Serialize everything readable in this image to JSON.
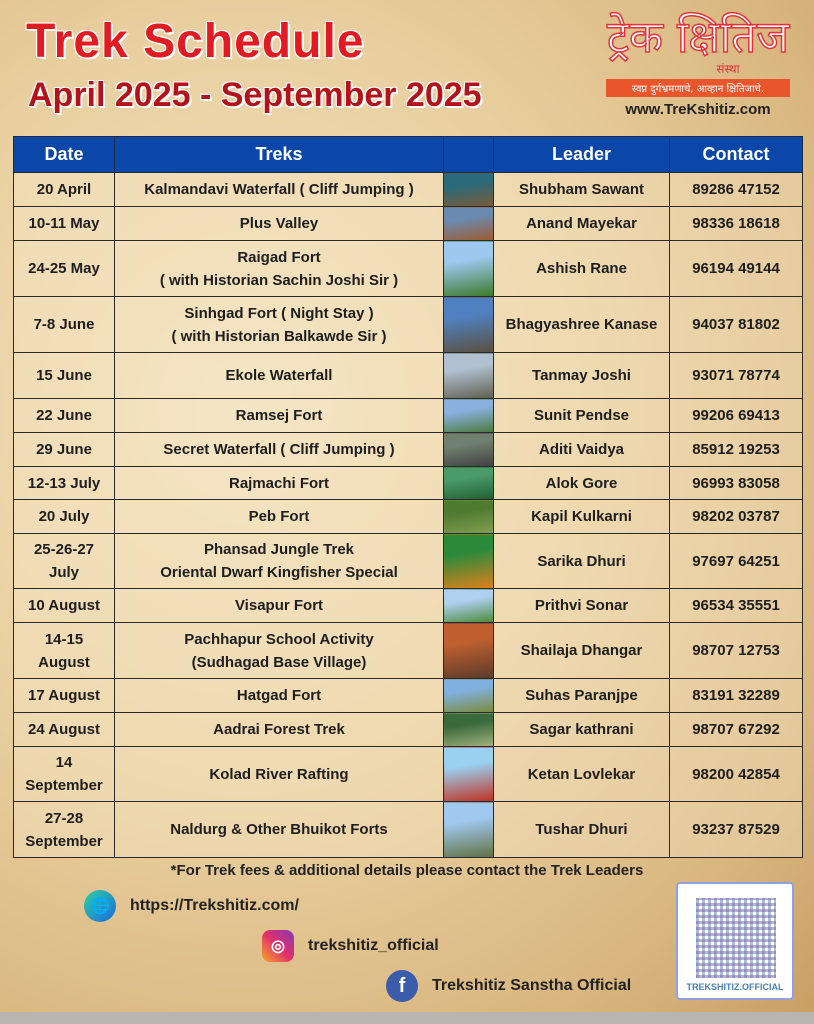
{
  "header": {
    "title": "Trek Schedule",
    "subtitle": "April 2025 - September 2025"
  },
  "logo": {
    "name": "ट्रेक क्षितिज",
    "sanstha": "संस्था",
    "tagline": "स्वप्न दुर्गभ्रमणाचे, आव्हान क्षितिजाचे.",
    "url": "www.TreKshitiz.com"
  },
  "table": {
    "columns": [
      "Date",
      "Treks",
      "",
      "Leader",
      "Contact"
    ],
    "rows": [
      {
        "date": "20 April",
        "trek": "Kalmandavi Waterfall ( Cliff Jumping )",
        "leader": "Shubham Sawant",
        "contact": "89286 47152"
      },
      {
        "date": "10-11 May",
        "trek": "Plus Valley",
        "leader": "Anand Mayekar",
        "contact": "98336 18618"
      },
      {
        "date": "24-25 May",
        "trek": "Raigad Fort\n( with Historian Sachin Joshi Sir )",
        "leader": "Ashish Rane",
        "contact": "96194 49144"
      },
      {
        "date": "7-8 June",
        "trek": "Sinhgad Fort ( Night Stay )\n( with Historian Balkawde Sir )",
        "leader": "Bhagyashree Kanase",
        "contact": "94037 81802"
      },
      {
        "date": "15 June",
        "trek": "Ekole Waterfall",
        "leader": "Tanmay Joshi",
        "contact": "93071 78774"
      },
      {
        "date": "22 June",
        "trek": "Ramsej Fort",
        "leader": "Sunit Pendse",
        "contact": "99206 69413"
      },
      {
        "date": "29 June",
        "trek": "Secret Waterfall ( Cliff Jumping )",
        "leader": "Aditi Vaidya",
        "contact": "85912 19253"
      },
      {
        "date": "12-13 July",
        "trek": "Rajmachi Fort",
        "leader": "Alok Gore",
        "contact": "96993 83058"
      },
      {
        "date": "20 July",
        "trek": "Peb Fort",
        "leader": "Kapil Kulkarni",
        "contact": "98202 03787"
      },
      {
        "date": "25-26-27\nJuly",
        "trek": "Phansad Jungle Trek\nOriental Dwarf Kingfisher Special",
        "leader": "Sarika Dhuri",
        "contact": "97697 64251"
      },
      {
        "date": "10 August",
        "trek": "Visapur Fort",
        "leader": "Prithvi Sonar",
        "contact": "96534 35551"
      },
      {
        "date": "14-15\nAugust",
        "trek": "Pachhapur School Activity\n(Sudhagad Base Village)",
        "leader": "Shailaja Dhangar",
        "contact": "98707 12753"
      },
      {
        "date": "17 August",
        "trek": "Hatgad Fort",
        "leader": "Suhas Paranjpe",
        "contact": "83191 32289"
      },
      {
        "date": "24 August",
        "trek": "Aadrai Forest Trek",
        "leader": "Sagar kathrani",
        "contact": "98707 67292"
      },
      {
        "date": "14\nSeptember",
        "trek": "Kolad River Rafting",
        "leader": "Ketan Lovlekar",
        "contact": "98200 42854"
      },
      {
        "date": "27-28\nSeptember",
        "trek": "Naldurg & Other Bhuikot Forts",
        "leader": "Tushar Dhuri",
        "contact": "93237 87529"
      }
    ]
  },
  "note": "*For Trek fees & additional details please contact the Trek Leaders",
  "social": {
    "website": "https://Trekshitiz.com/",
    "instagram": "trekshitiz_official",
    "facebook": "Trekshitiz Sanstha Official",
    "qr_label": "TREKSHITIZ.OFFICIAL"
  },
  "colors": {
    "title": "#e21a22",
    "header_bg": "#0a47a8",
    "accent": "#e9562b"
  }
}
